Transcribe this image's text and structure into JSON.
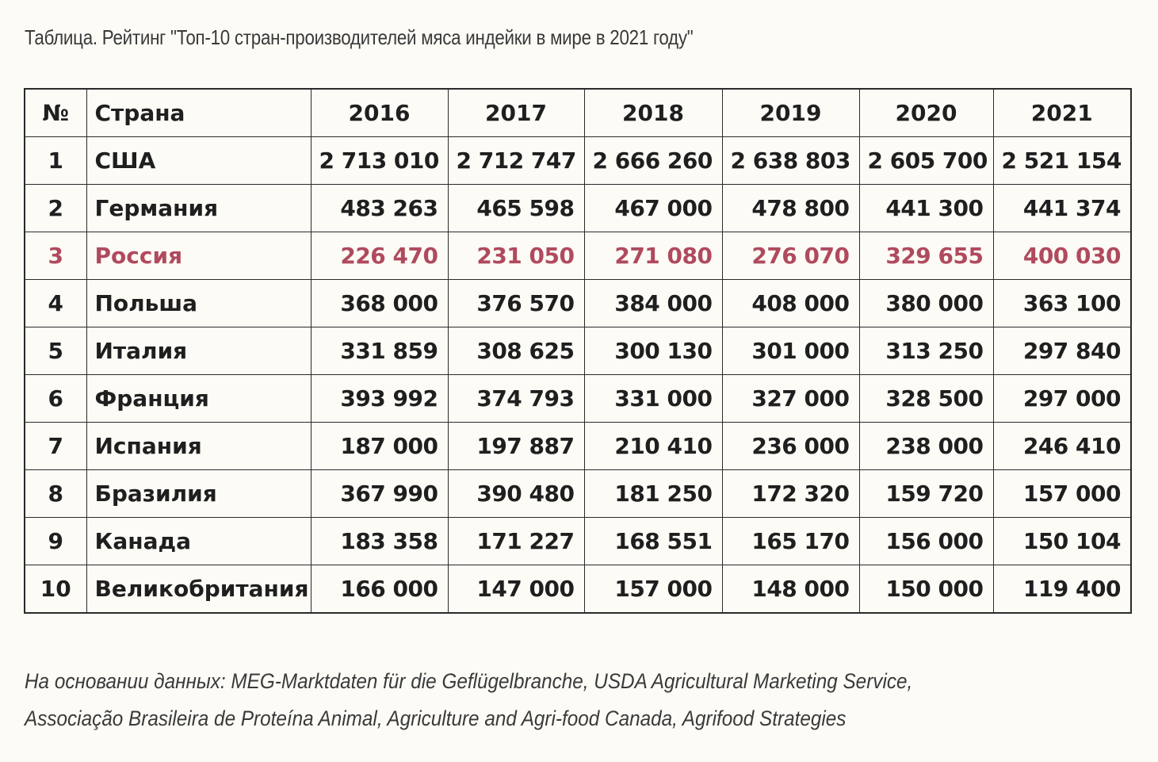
{
  "title": "Таблица. Рейтинг \"Топ-10 стран-производителей мяса индейки в мире в 2021 году\"",
  "source": {
    "line1": "На основании данных: MEG-Marktdaten für die Geflügelbranche, USDA Agricultural Marketing Service,",
    "line2": "Associação Brasileira de Proteína Animal, Agriculture and Agri-food Canada, Agrifood Strategies"
  },
  "colors": {
    "highlight": "#b04a5e",
    "text": "#1f1f1f",
    "border": "#2a2a2a"
  },
  "chart_data": {
    "type": "table",
    "title": "Таблица. Рейтинг \"Топ-10 стран-производителей мяса индейки в мире в 2021 году\"",
    "headers": [
      "№",
      "Страна",
      "2016",
      "2017",
      "2018",
      "2019",
      "2020",
      "2021"
    ],
    "highlight_row": 2,
    "rows": [
      {
        "rank": "1",
        "country": "США",
        "values": [
          "2 713 010",
          "2 712 747",
          "2 666 260",
          "2 638 803",
          "2 605 700",
          "2 521 154"
        ]
      },
      {
        "rank": "2",
        "country": "Германия",
        "values": [
          "483 263",
          "465 598",
          "467 000",
          "478 800",
          "441 300",
          "441 374"
        ]
      },
      {
        "rank": "3",
        "country": "Россия",
        "values": [
          "226 470",
          "231 050",
          "271 080",
          "276 070",
          "329 655",
          "400 030"
        ]
      },
      {
        "rank": "4",
        "country": "Польша",
        "values": [
          "368 000",
          "376 570",
          "384 000",
          "408 000",
          "380 000",
          "363 100"
        ]
      },
      {
        "rank": "5",
        "country": "Италия",
        "values": [
          "331 859",
          "308 625",
          "300 130",
          "301 000",
          "313 250",
          "297 840"
        ]
      },
      {
        "rank": "6",
        "country": "Франция",
        "values": [
          "393 992",
          "374 793",
          "331 000",
          "327 000",
          "328 500",
          "297 000"
        ]
      },
      {
        "rank": "7",
        "country": "Испания",
        "values": [
          "187 000",
          "197 887",
          "210 410",
          "236 000",
          "238 000",
          "246 410"
        ]
      },
      {
        "rank": "8",
        "country": "Бразилия",
        "values": [
          "367 990",
          "390 480",
          "181 250",
          "172 320",
          "159 720",
          "157 000"
        ]
      },
      {
        "rank": "9",
        "country": "Канада",
        "values": [
          "183 358",
          "171 227",
          "168 551",
          "165 170",
          "156 000",
          "150 104"
        ]
      },
      {
        "rank": "10",
        "country": "Великобритания",
        "values": [
          "166 000",
          "147 000",
          "157 000",
          "148 000",
          "150 000",
          "119 400"
        ]
      }
    ]
  }
}
